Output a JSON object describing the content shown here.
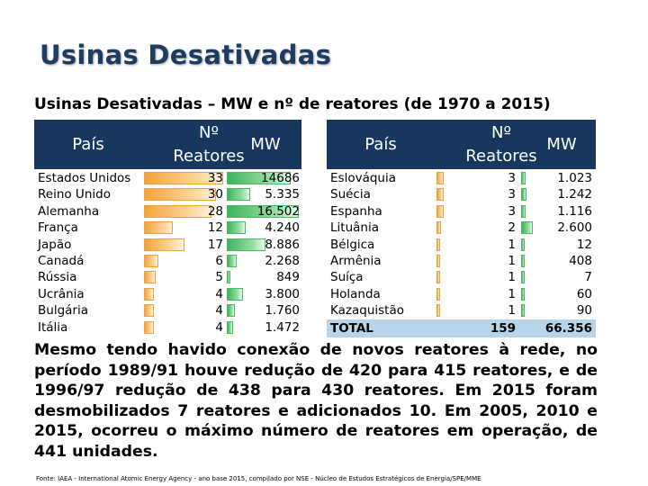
{
  "slide_title": "Usinas Desativadas",
  "table_title": "Usinas Desativadas – MW e nº de reatores (de 1970 a 2015)",
  "headers": {
    "country": "País",
    "reactors_line1": "Nº",
    "reactors_line2": "Reatores",
    "mw": "MW"
  },
  "left_rows": [
    {
      "country": "Estados Unidos",
      "reactors": "33",
      "mw": "14686",
      "reactors_value": 33,
      "mw_value": 14686
    },
    {
      "country": "Reino Unido",
      "reactors": "30",
      "mw": "5.335",
      "reactors_value": 30,
      "mw_value": 5335
    },
    {
      "country": "Alemanha",
      "reactors": "28",
      "mw": "16.502",
      "reactors_value": 28,
      "mw_value": 16502
    },
    {
      "country": "França",
      "reactors": "12",
      "mw": "4.240",
      "reactors_value": 12,
      "mw_value": 4240
    },
    {
      "country": "Japão",
      "reactors": "17",
      "mw": "8.886",
      "reactors_value": 17,
      "mw_value": 8886
    },
    {
      "country": "Canadá",
      "reactors": "6",
      "mw": "2.268",
      "reactors_value": 6,
      "mw_value": 2268
    },
    {
      "country": "Rússia",
      "reactors": "5",
      "mw": "849",
      "reactors_value": 5,
      "mw_value": 849
    },
    {
      "country": "Ucrânia",
      "reactors": "4",
      "mw": "3.800",
      "reactors_value": 4,
      "mw_value": 3800
    },
    {
      "country": "Bulgária",
      "reactors": "4",
      "mw": "1.760",
      "reactors_value": 4,
      "mw_value": 1760
    },
    {
      "country": "Itália",
      "reactors": "4",
      "mw": "1.472",
      "reactors_value": 4,
      "mw_value": 1472
    }
  ],
  "right_rows": [
    {
      "country": "Eslováquia",
      "reactors": "3",
      "mw": "1.023",
      "reactors_value": 3,
      "mw_value": 1023
    },
    {
      "country": "Suécia",
      "reactors": "3",
      "mw": "1.242",
      "reactors_value": 3,
      "mw_value": 1242
    },
    {
      "country": "Espanha",
      "reactors": "3",
      "mw": "1.116",
      "reactors_value": 3,
      "mw_value": 1116
    },
    {
      "country": "Lituânia",
      "reactors": "2",
      "mw": "2.600",
      "reactors_value": 2,
      "mw_value": 2600
    },
    {
      "country": "Bélgica",
      "reactors": "1",
      "mw": "12",
      "reactors_value": 1,
      "mw_value": 12
    },
    {
      "country": "Armênia",
      "reactors": "1",
      "mw": "408",
      "reactors_value": 1,
      "mw_value": 408
    },
    {
      "country": "Suíça",
      "reactors": "1",
      "mw": "7",
      "reactors_value": 1,
      "mw_value": 7
    },
    {
      "country": "Holanda",
      "reactors": "1",
      "mw": "60",
      "reactors_value": 1,
      "mw_value": 60
    },
    {
      "country": "Kazaquistão",
      "reactors": "1",
      "mw": "90",
      "reactors_value": 1,
      "mw_value": 90
    }
  ],
  "total": {
    "label": "TOTAL",
    "reactors": "159",
    "mw": "66.356"
  },
  "scale": {
    "reactors_max": 33,
    "mw_max": 16502
  },
  "colors": {
    "title": "#1f3b60",
    "header_bg": "#17375e",
    "total_bg": "#b8d4e8",
    "reactor_bar": "#f6a33a",
    "mw_bar": "#3db35a"
  },
  "body_text": "Mesmo tendo havido conexão de novos reatores à rede, no período 1989/91 houve redução de 420 para 415 reatores, e de 1996/97 redução de 438 para 430 reatores. Em 2015 foram desmobilizados 7 reatores e adicionados 10. Em 2005, 2010 e 2015, ocorreu o máximo número de reatores em operação, de 441 unidades.",
  "footnote": "Fonte: IAEA - International Atomic Energy Agency - ano base 2015, compilado por NSE - Núcleo de Estudos Estratégicos de Energia/SPE/MME"
}
